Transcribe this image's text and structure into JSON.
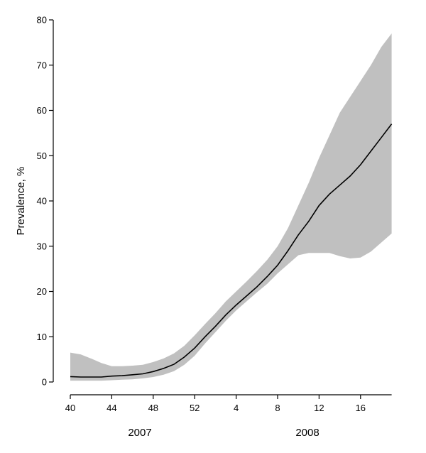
{
  "chart_data": {
    "type": "line",
    "title": "",
    "xlabel": "",
    "ylabel": "Prevalence, %",
    "x_tick_labels": [
      "40",
      "44",
      "48",
      "52",
      "4",
      "8",
      "12",
      "16"
    ],
    "y_tick_labels": [
      "0",
      "10",
      "20",
      "30",
      "40",
      "50",
      "60",
      "70",
      "80"
    ],
    "year_labels": [
      "2007",
      "2008"
    ],
    "ylim": [
      0,
      80
    ],
    "grid": false,
    "colors": {
      "line": "#000000",
      "band": "#c0c0c0",
      "axis": "#000000"
    },
    "series": [
      {
        "x": [
          "2007-W40",
          "2007-W41",
          "2007-W42",
          "2007-W43",
          "2007-W44",
          "2007-W45",
          "2007-W46",
          "2007-W47",
          "2007-W48",
          "2007-W49",
          "2007-W50",
          "2007-W51",
          "2007-W52",
          "2008-W01",
          "2008-W02",
          "2008-W03",
          "2008-W04",
          "2008-W05",
          "2008-W06",
          "2008-W07",
          "2008-W08",
          "2008-W09",
          "2008-W10",
          "2008-W11",
          "2008-W12",
          "2008-W13",
          "2008-W14",
          "2008-W15",
          "2008-W16",
          "2008-W17",
          "2008-W18",
          "2008-W19"
        ],
        "values": [
          1.2,
          1.1,
          1.1,
          1.1,
          1.3,
          1.4,
          1.6,
          1.8,
          2.3,
          3.0,
          3.9,
          5.5,
          7.5,
          10.0,
          12.3,
          14.8,
          17.0,
          19.0,
          21.0,
          23.3,
          25.8,
          29.0,
          32.5,
          35.5,
          39.0,
          41.5,
          43.5,
          45.5,
          48.0,
          51.0,
          54.0,
          57.0
        ],
        "ci_lower": [
          0.3,
          0.3,
          0.3,
          0.3,
          0.4,
          0.5,
          0.6,
          0.8,
          1.1,
          1.6,
          2.4,
          3.8,
          5.8,
          8.5,
          11.0,
          13.5,
          15.8,
          17.8,
          19.8,
          21.7,
          24.0,
          26.0,
          28.0,
          28.5,
          28.5,
          28.5,
          27.8,
          27.3,
          27.5,
          28.8,
          30.8,
          32.8
        ],
        "ci_upper": [
          6.5,
          6.1,
          5.2,
          4.2,
          3.5,
          3.5,
          3.6,
          3.8,
          4.4,
          5.2,
          6.3,
          8.0,
          10.3,
          12.8,
          15.2,
          17.8,
          20.0,
          22.2,
          24.5,
          27.0,
          30.0,
          34.0,
          39.0,
          44.0,
          49.5,
          54.5,
          59.5,
          63.0,
          66.5,
          70.0,
          74.0,
          77.0
        ]
      }
    ]
  }
}
